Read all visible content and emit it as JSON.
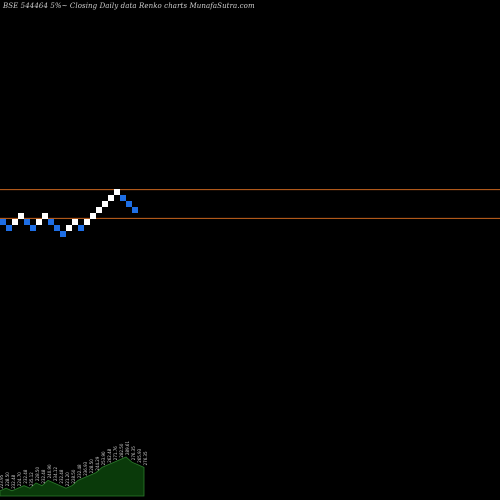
{
  "header": {
    "title": "BSE 544464  5%~  Closing Daily data  Renko  charts MunafaSutra.com"
  },
  "colors": {
    "background": "#000000",
    "up_brick": "#ffffff",
    "down_brick": "#1e6fe6",
    "reference_line": "#c8641e",
    "volume_fill": "#0a3a0a",
    "volume_stroke": "#2b7a2b",
    "price_label": "#d0d0d0"
  },
  "chart_data": {
    "type": "renko",
    "brick_size_label": "5%",
    "bricks": [
      {
        "direction": "down",
        "level": 0
      },
      {
        "direction": "down",
        "level": -1
      },
      {
        "direction": "up",
        "level": 0
      },
      {
        "direction": "up",
        "level": 1
      },
      {
        "direction": "down",
        "level": 0
      },
      {
        "direction": "down",
        "level": -1
      },
      {
        "direction": "up",
        "level": 0
      },
      {
        "direction": "up",
        "level": 1
      },
      {
        "direction": "down",
        "level": 0
      },
      {
        "direction": "down",
        "level": -1
      },
      {
        "direction": "down",
        "level": -2
      },
      {
        "direction": "up",
        "level": -1
      },
      {
        "direction": "up",
        "level": 0
      },
      {
        "direction": "down",
        "level": -1
      },
      {
        "direction": "up",
        "level": 0
      },
      {
        "direction": "up",
        "level": 1
      },
      {
        "direction": "up",
        "level": 2
      },
      {
        "direction": "up",
        "level": 3
      },
      {
        "direction": "up",
        "level": 4
      },
      {
        "direction": "up",
        "level": 5
      },
      {
        "direction": "down",
        "level": 4
      },
      {
        "direction": "down",
        "level": 3
      },
      {
        "direction": "down",
        "level": 2
      }
    ],
    "reference_lines": [
      {
        "level": 5.4
      },
      {
        "level": 0.6
      }
    ],
    "price_labels": [
      "223.95",
      "228.50",
      "232.48",
      "224.70",
      "232.48",
      "235.12",
      "228.50",
      "232.48",
      "240.90",
      "234.12",
      "232.48",
      "221.20",
      "228.50",
      "232.48",
      "236.93",
      "228.50",
      "244.29",
      "253.90",
      "262.48",
      "271.76",
      "282.50",
      "289.61",
      "276.35",
      "265.93",
      "276.35"
    ],
    "volume": [
      2,
      3,
      2,
      3,
      4,
      3,
      5,
      4,
      6,
      5,
      4,
      3,
      4,
      6,
      7,
      8,
      9,
      11,
      12,
      13,
      14,
      15,
      13,
      12,
      11
    ]
  }
}
